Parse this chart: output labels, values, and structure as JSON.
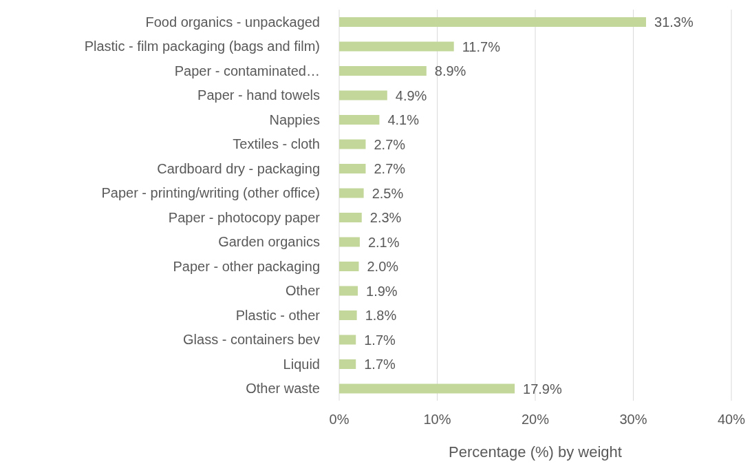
{
  "chart_data": {
    "type": "bar",
    "orientation": "horizontal",
    "xlabel": "Percentage (%) by weight",
    "categories": [
      "Food organics - unpackaged",
      "Plastic - film packaging (bags and film)",
      "Paper - contaminated…",
      "Paper - hand towels",
      "Nappies",
      "Textiles - cloth",
      "Cardboard dry - packaging",
      "Paper - printing/writing (other office)",
      "Paper - photocopy paper",
      "Garden organics",
      "Paper - other packaging",
      "Other",
      "Plastic - other",
      "Glass - containers bev",
      "Liquid",
      "Other waste"
    ],
    "values": [
      31.3,
      11.7,
      8.9,
      4.9,
      4.1,
      2.7,
      2.7,
      2.5,
      2.3,
      2.1,
      2.0,
      1.9,
      1.8,
      1.7,
      1.7,
      17.9
    ],
    "value_labels": [
      "31.3%",
      "11.7%",
      "8.9%",
      "4.9%",
      "4.1%",
      "2.7%",
      "2.7%",
      "2.5%",
      "2.3%",
      "2.1%",
      "2.0%",
      "1.9%",
      "1.8%",
      "1.7%",
      "1.7%",
      "17.9%"
    ],
    "color": "#c4d79b",
    "xlim": [
      0,
      40
    ],
    "xticks": [
      {
        "value": 0,
        "label": "0%"
      },
      {
        "value": 10,
        "label": "10%"
      },
      {
        "value": 20,
        "label": "20%"
      },
      {
        "value": 30,
        "label": "30%"
      },
      {
        "value": 40,
        "label": "40%"
      }
    ],
    "grid": "x",
    "legend": false
  }
}
